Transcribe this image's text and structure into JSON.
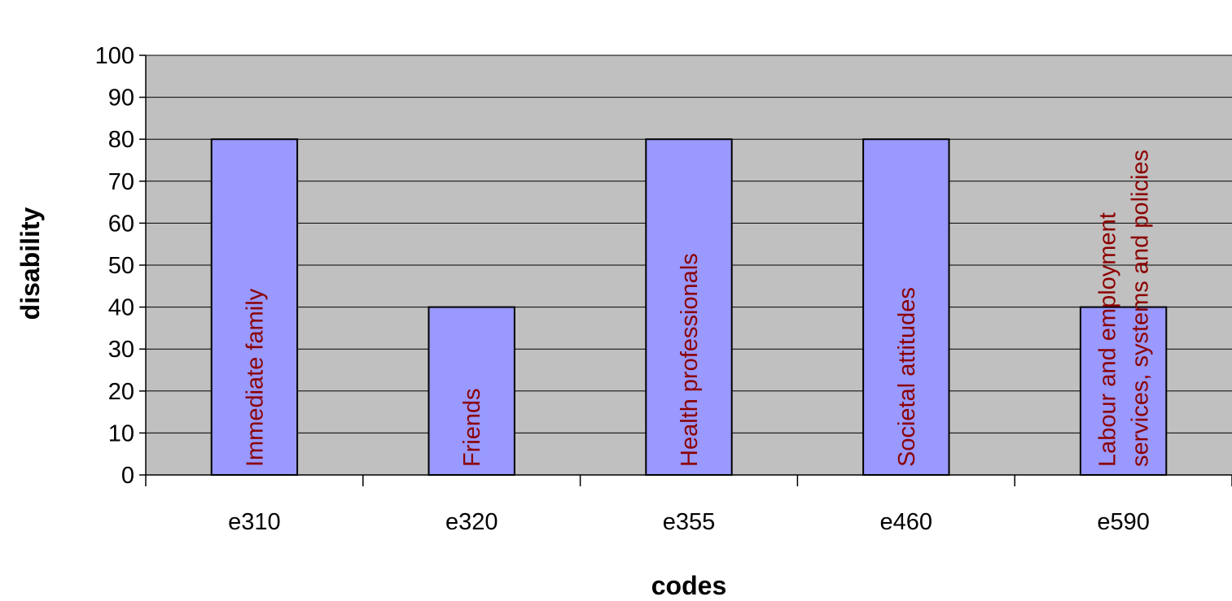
{
  "chart_data": {
    "type": "bar",
    "categories": [
      "e310",
      "e320",
      "e355",
      "e460",
      "e590"
    ],
    "values": [
      80,
      40,
      80,
      80,
      40
    ],
    "data_labels": [
      [
        "Immediate family"
      ],
      [
        "Friends"
      ],
      [
        "Health professionals"
      ],
      [
        "Societal attitudes"
      ],
      [
        "Labour and employment",
        "services, systems and policies"
      ]
    ],
    "title": "",
    "xlabel": "codes",
    "ylabel": "disability",
    "ylim": [
      0,
      100
    ],
    "yticks": [
      0,
      10,
      20,
      30,
      40,
      50,
      60,
      70,
      80,
      90,
      100
    ],
    "grid": true,
    "legend": "none"
  },
  "colors": {
    "plot_background": "#c0c0c0",
    "bar_fill": "#9999ff",
    "bar_stroke": "#000000",
    "gridline": "#000000",
    "data_label": "#8b0000"
  }
}
